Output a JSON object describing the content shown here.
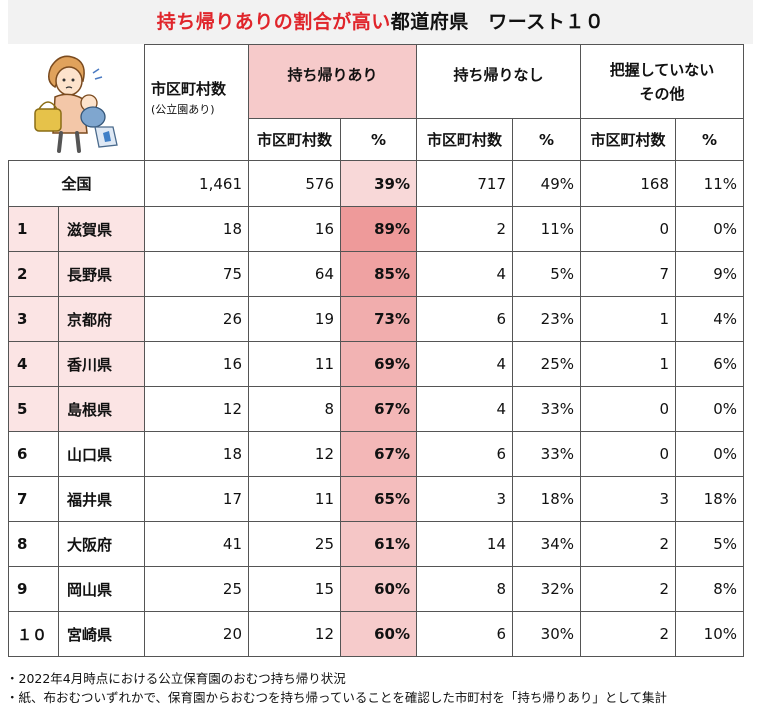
{
  "title": {
    "red": "持ち帰りありの割合が高い",
    "black": "都道府県　ワースト１０"
  },
  "headers": {
    "municipalities": "市区町村数",
    "municipalities_note": "(公立園あり)",
    "with_takeback": "持ち帰りあり",
    "without_takeback": "持ち帰りなし",
    "unknown_other_line1": "把握していない",
    "unknown_other_line2": "その他",
    "sub_count": "市区町村数",
    "sub_pct": "%"
  },
  "national": {
    "label": "全国",
    "total": "1,461",
    "with_count": "576",
    "with_pct": "39%",
    "without_count": "717",
    "without_pct": "49%",
    "other_count": "168",
    "other_pct": "11%"
  },
  "rows": [
    {
      "rank": "1",
      "pref": "滋賀県",
      "total": "18",
      "with_count": "16",
      "with_pct": "89%",
      "without_count": "2",
      "without_pct": "11%",
      "other_count": "0",
      "other_pct": "0%"
    },
    {
      "rank": "2",
      "pref": "長野県",
      "total": "75",
      "with_count": "64",
      "with_pct": "85%",
      "without_count": "4",
      "without_pct": "5%",
      "other_count": "7",
      "other_pct": "9%"
    },
    {
      "rank": "3",
      "pref": "京都府",
      "total": "26",
      "with_count": "19",
      "with_pct": "73%",
      "without_count": "6",
      "without_pct": "23%",
      "other_count": "1",
      "other_pct": "4%"
    },
    {
      "rank": "4",
      "pref": "香川県",
      "total": "16",
      "with_count": "11",
      "with_pct": "69%",
      "without_count": "4",
      "without_pct": "25%",
      "other_count": "1",
      "other_pct": "6%"
    },
    {
      "rank": "5",
      "pref": "島根県",
      "total": "12",
      "with_count": "8",
      "with_pct": "67%",
      "without_count": "4",
      "without_pct": "33%",
      "other_count": "0",
      "other_pct": "0%"
    },
    {
      "rank": "6",
      "pref": "山口県",
      "total": "18",
      "with_count": "12",
      "with_pct": "67%",
      "without_count": "6",
      "without_pct": "33%",
      "other_count": "0",
      "other_pct": "0%"
    },
    {
      "rank": "7",
      "pref": "福井県",
      "total": "17",
      "with_count": "11",
      "with_pct": "65%",
      "without_count": "3",
      "without_pct": "18%",
      "other_count": "3",
      "other_pct": "18%"
    },
    {
      "rank": "8",
      "pref": "大阪府",
      "total": "41",
      "with_count": "25",
      "with_pct": "61%",
      "without_count": "14",
      "without_pct": "34%",
      "other_count": "2",
      "other_pct": "5%"
    },
    {
      "rank": "9",
      "pref": "岡山県",
      "total": "25",
      "with_count": "15",
      "with_pct": "60%",
      "without_count": "8",
      "without_pct": "32%",
      "other_count": "2",
      "other_pct": "8%"
    },
    {
      "rank": "１０",
      "pref": "宮崎県",
      "total": "20",
      "with_count": "12",
      "with_pct": "60%",
      "without_count": "6",
      "without_pct": "30%",
      "other_count": "2",
      "other_pct": "10%"
    }
  ],
  "highlight_colors": {
    "header_pink": "#f6caca",
    "pref_pink": "#fbe4e4",
    "pct_scale_high": "#ee9a9a",
    "pct_scale_low": "#f6cfcf",
    "national_pct": "#f8d8d8"
  },
  "footer": [
    "・2022年4月時点における公立保育園のおむつ持ち帰り状況",
    "・紙、布おむついずれかで、保育園からおむつを持ち帰っていることを確認した市町村を「持ち帰りあり」として集計"
  ],
  "illustration": "mother-carrying-baby-and-diaper-bag-icon"
}
